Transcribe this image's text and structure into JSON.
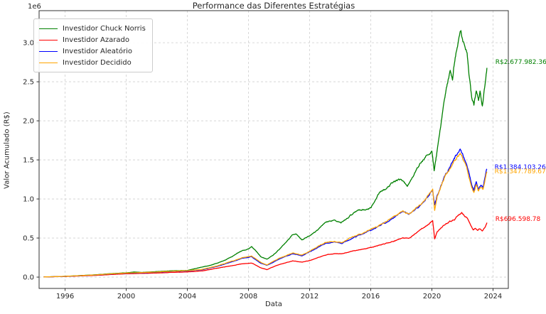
{
  "title": "Performance das Diferentes Estratégias",
  "axes": {
    "x_label": "Data",
    "y_label": "Valor Acumulado (R$)",
    "y_offset_label": "1e6",
    "x_ticks": [
      "1996",
      "2000",
      "2004",
      "2008",
      "2012",
      "2016",
      "2020",
      "2024"
    ],
    "x_tick_years": [
      1996,
      2000,
      2004,
      2008,
      2012,
      2016,
      2020,
      2024
    ],
    "y_ticks": [
      "0.0",
      "0.5",
      "1.0",
      "1.5",
      "2.0",
      "2.5",
      "3.0"
    ],
    "y_tick_values": [
      0.0,
      0.5,
      1.0,
      1.5,
      2.0,
      2.5,
      3.0
    ],
    "x_range": [
      1994.3,
      2025.0
    ],
    "y_range_millions": [
      -0.145,
      3.41
    ],
    "grid": true,
    "grid_color": "#cfcfcf",
    "spine_color": "#333333"
  },
  "chart_data": {
    "type": "line",
    "x_unit": "year",
    "y_unit": "millions of R$",
    "title": "Performance das Diferentes Estratégias",
    "xlabel": "Data",
    "ylabel": "Valor Acumulado (R$)",
    "legend_position": "upper left",
    "series": [
      {
        "name": "Investidor Chuck Norris",
        "color": "#008000",
        "final_value_label": "R$2.677.982.36",
        "points": [
          [
            1994.6,
            0.002
          ],
          [
            1996,
            0.01
          ],
          [
            1997,
            0.02
          ],
          [
            1998,
            0.03
          ],
          [
            1999,
            0.045
          ],
          [
            2000,
            0.055
          ],
          [
            2000.5,
            0.065
          ],
          [
            2001,
            0.06
          ],
          [
            2002,
            0.07
          ],
          [
            2003,
            0.08
          ],
          [
            2004,
            0.085
          ],
          [
            2005,
            0.13
          ],
          [
            2005.5,
            0.15
          ],
          [
            2006,
            0.18
          ],
          [
            2006.5,
            0.22
          ],
          [
            2007,
            0.27
          ],
          [
            2007.5,
            0.33
          ],
          [
            2008,
            0.36
          ],
          [
            2008.2,
            0.39
          ],
          [
            2008.5,
            0.33
          ],
          [
            2008.8,
            0.26
          ],
          [
            2009.2,
            0.23
          ],
          [
            2009.6,
            0.28
          ],
          [
            2010,
            0.35
          ],
          [
            2010.5,
            0.46
          ],
          [
            2010.9,
            0.54
          ],
          [
            2011.1,
            0.55
          ],
          [
            2011.5,
            0.47
          ],
          [
            2012,
            0.53
          ],
          [
            2012.5,
            0.6
          ],
          [
            2013,
            0.7
          ],
          [
            2013.6,
            0.73
          ],
          [
            2014.05,
            0.7
          ],
          [
            2014.75,
            0.8
          ],
          [
            2015.2,
            0.86
          ],
          [
            2015.7,
            0.87
          ],
          [
            2016,
            0.89
          ],
          [
            2016.6,
            1.09
          ],
          [
            2017,
            1.13
          ],
          [
            2017.5,
            1.22
          ],
          [
            2018,
            1.26
          ],
          [
            2018.4,
            1.17
          ],
          [
            2018.8,
            1.3
          ],
          [
            2019.2,
            1.45
          ],
          [
            2019.6,
            1.55
          ],
          [
            2020,
            1.62
          ],
          [
            2020.15,
            1.35
          ],
          [
            2020.3,
            1.55
          ],
          [
            2020.5,
            1.85
          ],
          [
            2020.7,
            2.1
          ],
          [
            2020.9,
            2.38
          ],
          [
            2021.05,
            2.5
          ],
          [
            2021.2,
            2.65
          ],
          [
            2021.35,
            2.52
          ],
          [
            2021.5,
            2.8
          ],
          [
            2021.65,
            2.95
          ],
          [
            2021.8,
            3.1
          ],
          [
            2021.9,
            3.17
          ],
          [
            2022,
            3.05
          ],
          [
            2022.15,
            2.93
          ],
          [
            2022.3,
            2.88
          ],
          [
            2022.45,
            2.55
          ],
          [
            2022.6,
            2.3
          ],
          [
            2022.75,
            2.2
          ],
          [
            2022.9,
            2.37
          ],
          [
            2023.05,
            2.25
          ],
          [
            2023.15,
            2.36
          ],
          [
            2023.3,
            2.2
          ],
          [
            2023.45,
            2.42
          ],
          [
            2023.6,
            2.678
          ]
        ]
      },
      {
        "name": "Investidor Azarado",
        "color": "#ff0000",
        "final_value_label": "R$696.598.78",
        "points": [
          [
            1994.6,
            0.002
          ],
          [
            1996,
            0.008
          ],
          [
            1997,
            0.015
          ],
          [
            1998,
            0.022
          ],
          [
            1999,
            0.033
          ],
          [
            2000,
            0.042
          ],
          [
            2001,
            0.047
          ],
          [
            2002,
            0.052
          ],
          [
            2003,
            0.06
          ],
          [
            2004,
            0.066
          ],
          [
            2005,
            0.08
          ],
          [
            2006,
            0.115
          ],
          [
            2007,
            0.15
          ],
          [
            2007.6,
            0.17
          ],
          [
            2008.2,
            0.18
          ],
          [
            2008.8,
            0.12
          ],
          [
            2009.2,
            0.095
          ],
          [
            2009.6,
            0.13
          ],
          [
            2010,
            0.16
          ],
          [
            2010.9,
            0.21
          ],
          [
            2011.5,
            0.19
          ],
          [
            2012,
            0.21
          ],
          [
            2013,
            0.28
          ],
          [
            2013.6,
            0.3
          ],
          [
            2014.1,
            0.3
          ],
          [
            2014.8,
            0.33
          ],
          [
            2015.3,
            0.35
          ],
          [
            2016,
            0.38
          ],
          [
            2016.6,
            0.41
          ],
          [
            2017,
            0.43
          ],
          [
            2017.5,
            0.46
          ],
          [
            2018.1,
            0.5
          ],
          [
            2018.5,
            0.49
          ],
          [
            2018.9,
            0.55
          ],
          [
            2019.4,
            0.62
          ],
          [
            2019.8,
            0.68
          ],
          [
            2020.05,
            0.72
          ],
          [
            2020.18,
            0.49
          ],
          [
            2020.35,
            0.58
          ],
          [
            2020.6,
            0.63
          ],
          [
            2020.9,
            0.68
          ],
          [
            2021.2,
            0.71
          ],
          [
            2021.5,
            0.74
          ],
          [
            2021.8,
            0.8
          ],
          [
            2021.95,
            0.83
          ],
          [
            2022.1,
            0.8
          ],
          [
            2022.3,
            0.76
          ],
          [
            2022.5,
            0.68
          ],
          [
            2022.7,
            0.61
          ],
          [
            2022.85,
            0.63
          ],
          [
            2023,
            0.6
          ],
          [
            2023.15,
            0.62
          ],
          [
            2023.3,
            0.59
          ],
          [
            2023.45,
            0.63
          ],
          [
            2023.6,
            0.697
          ]
        ]
      },
      {
        "name": "Investidor Aleatório",
        "color": "#0000ff",
        "final_value_label": "R$1.384.103.26",
        "points": [
          [
            1994.6,
            0.002
          ],
          [
            1996,
            0.009
          ],
          [
            1997,
            0.018
          ],
          [
            1998,
            0.027
          ],
          [
            1999,
            0.04
          ],
          [
            2000,
            0.05
          ],
          [
            2001,
            0.055
          ],
          [
            2002,
            0.062
          ],
          [
            2003,
            0.072
          ],
          [
            2004,
            0.078
          ],
          [
            2005,
            0.095
          ],
          [
            2006,
            0.14
          ],
          [
            2007,
            0.2
          ],
          [
            2007.6,
            0.24
          ],
          [
            2008.2,
            0.26
          ],
          [
            2008.8,
            0.18
          ],
          [
            2009.2,
            0.15
          ],
          [
            2009.6,
            0.19
          ],
          [
            2010,
            0.23
          ],
          [
            2010.9,
            0.3
          ],
          [
            2011.5,
            0.27
          ],
          [
            2012,
            0.32
          ],
          [
            2013,
            0.43
          ],
          [
            2013.6,
            0.45
          ],
          [
            2014.1,
            0.43
          ],
          [
            2014.8,
            0.5
          ],
          [
            2015.3,
            0.54
          ],
          [
            2016,
            0.6
          ],
          [
            2016.6,
            0.66
          ],
          [
            2017,
            0.7
          ],
          [
            2017.5,
            0.76
          ],
          [
            2018.1,
            0.84
          ],
          [
            2018.5,
            0.8
          ],
          [
            2018.9,
            0.86
          ],
          [
            2019.4,
            0.95
          ],
          [
            2019.8,
            1.05
          ],
          [
            2020.05,
            1.12
          ],
          [
            2020.18,
            0.93
          ],
          [
            2020.35,
            1.05
          ],
          [
            2020.6,
            1.18
          ],
          [
            2020.9,
            1.32
          ],
          [
            2021.1,
            1.38
          ],
          [
            2021.3,
            1.45
          ],
          [
            2021.5,
            1.52
          ],
          [
            2021.7,
            1.58
          ],
          [
            2021.85,
            1.63
          ],
          [
            2022,
            1.57
          ],
          [
            2022.2,
            1.48
          ],
          [
            2022.4,
            1.35
          ],
          [
            2022.6,
            1.18
          ],
          [
            2022.75,
            1.1
          ],
          [
            2022.9,
            1.22
          ],
          [
            2023.05,
            1.13
          ],
          [
            2023.2,
            1.18
          ],
          [
            2023.35,
            1.15
          ],
          [
            2023.5,
            1.3
          ],
          [
            2023.6,
            1.384
          ]
        ]
      },
      {
        "name": "Investidor Decidido",
        "color": "#ffa500",
        "final_value_label": "R$1.347.789.67",
        "points": [
          [
            1994.6,
            0.002
          ],
          [
            1996,
            0.01
          ],
          [
            1997,
            0.019
          ],
          [
            1998,
            0.028
          ],
          [
            1999,
            0.042
          ],
          [
            2000,
            0.052
          ],
          [
            2001,
            0.058
          ],
          [
            2002,
            0.065
          ],
          [
            2003,
            0.075
          ],
          [
            2004,
            0.082
          ],
          [
            2005,
            0.1
          ],
          [
            2006,
            0.145
          ],
          [
            2007,
            0.21
          ],
          [
            2007.6,
            0.25
          ],
          [
            2008.2,
            0.27
          ],
          [
            2008.8,
            0.19
          ],
          [
            2009.2,
            0.155
          ],
          [
            2009.6,
            0.2
          ],
          [
            2010,
            0.24
          ],
          [
            2010.9,
            0.31
          ],
          [
            2011.5,
            0.28
          ],
          [
            2012,
            0.33
          ],
          [
            2013,
            0.44
          ],
          [
            2013.6,
            0.46
          ],
          [
            2014.1,
            0.44
          ],
          [
            2014.8,
            0.51
          ],
          [
            2015.3,
            0.55
          ],
          [
            2016,
            0.61
          ],
          [
            2016.6,
            0.67
          ],
          [
            2017,
            0.71
          ],
          [
            2017.5,
            0.77
          ],
          [
            2018.1,
            0.85
          ],
          [
            2018.5,
            0.81
          ],
          [
            2018.9,
            0.87
          ],
          [
            2019.4,
            0.96
          ],
          [
            2019.8,
            1.06
          ],
          [
            2020.05,
            1.13
          ],
          [
            2020.18,
            0.85
          ],
          [
            2020.35,
            1.04
          ],
          [
            2020.6,
            1.17
          ],
          [
            2020.9,
            1.3
          ],
          [
            2021.1,
            1.36
          ],
          [
            2021.3,
            1.43
          ],
          [
            2021.5,
            1.5
          ],
          [
            2021.7,
            1.55
          ],
          [
            2021.85,
            1.59
          ],
          [
            2022,
            1.53
          ],
          [
            2022.2,
            1.44
          ],
          [
            2022.4,
            1.31
          ],
          [
            2022.6,
            1.14
          ],
          [
            2022.75,
            1.07
          ],
          [
            2022.9,
            1.18
          ],
          [
            2023.05,
            1.1
          ],
          [
            2023.2,
            1.15
          ],
          [
            2023.35,
            1.12
          ],
          [
            2023.5,
            1.27
          ],
          [
            2023.6,
            1.348
          ]
        ]
      }
    ],
    "annotations": [
      {
        "text": "R$2.677.982.36",
        "color": "#008000",
        "year": 2024.15,
        "value": 2.755
      },
      {
        "text": "R$1.384.103.26",
        "color": "#0000ff",
        "year": 2024.1,
        "value": 1.41
      },
      {
        "text": "R$1.347.789.67",
        "color": "#ffa500",
        "year": 2024.1,
        "value": 1.353
      },
      {
        "text": "R$696.598.78",
        "color": "#ff0000",
        "year": 2024.15,
        "value": 0.744
      }
    ]
  }
}
